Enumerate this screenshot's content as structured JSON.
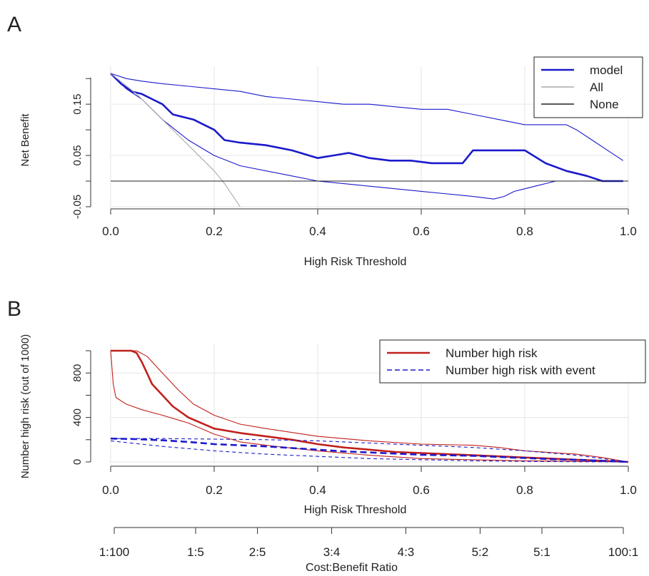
{
  "chart_data": [
    {
      "panel": "A",
      "type": "line",
      "xlabel": "High Risk Threshold",
      "ylabel": "Net Benefit",
      "xlim": [
        0,
        1
      ],
      "ylim": [
        -0.05,
        0.21
      ],
      "xticks": [
        0,
        0.2,
        0.4,
        0.6,
        0.8,
        1.0
      ],
      "xtick_labels": [
        "0.0",
        "0.2",
        "0.4",
        "0.6",
        "0.8",
        "1.0"
      ],
      "yticks": [
        -0.05,
        0.05,
        0.15
      ],
      "ytick_labels": [
        "-0.05",
        "0.05",
        "0.15"
      ],
      "grid": true,
      "legend_position": "top-right",
      "legend": [
        {
          "label": "model",
          "color": "#1a1acc"
        },
        {
          "label": "All",
          "color": "#aaaaaa"
        },
        {
          "label": "None",
          "color": "#222222"
        }
      ],
      "series": [
        {
          "name": "model",
          "style": "thick",
          "color": "#1a1acc",
          "x": [
            0,
            0.02,
            0.04,
            0.06,
            0.08,
            0.1,
            0.12,
            0.14,
            0.16,
            0.18,
            0.2,
            0.22,
            0.25,
            0.3,
            0.35,
            0.4,
            0.43,
            0.46,
            0.5,
            0.54,
            0.58,
            0.62,
            0.66,
            0.68,
            0.7,
            0.72,
            0.74,
            0.77,
            0.8,
            0.84,
            0.88,
            0.92,
            0.95,
            0.99
          ],
          "y": [
            0.21,
            0.19,
            0.175,
            0.17,
            0.16,
            0.15,
            0.13,
            0.125,
            0.12,
            0.11,
            0.1,
            0.08,
            0.075,
            0.07,
            0.06,
            0.045,
            0.05,
            0.055,
            0.045,
            0.04,
            0.04,
            0.035,
            0.035,
            0.035,
            0.06,
            0.06,
            0.06,
            0.06,
            0.06,
            0.035,
            0.02,
            0.01,
            0.0,
            0.0
          ]
        },
        {
          "name": "model-upper",
          "style": "thin",
          "color": "#1a1acc",
          "x": [
            0,
            0.03,
            0.06,
            0.1,
            0.15,
            0.2,
            0.25,
            0.3,
            0.35,
            0.4,
            0.45,
            0.5,
            0.55,
            0.6,
            0.65,
            0.7,
            0.75,
            0.8,
            0.85,
            0.88,
            0.9,
            0.93,
            0.96,
            0.99
          ],
          "y": [
            0.21,
            0.2,
            0.195,
            0.19,
            0.185,
            0.18,
            0.175,
            0.165,
            0.16,
            0.155,
            0.15,
            0.15,
            0.145,
            0.14,
            0.14,
            0.13,
            0.12,
            0.11,
            0.11,
            0.11,
            0.1,
            0.08,
            0.06,
            0.04
          ]
        },
        {
          "name": "model-lower",
          "style": "thin",
          "color": "#1a1acc",
          "x": [
            0,
            0.03,
            0.06,
            0.1,
            0.15,
            0.2,
            0.25,
            0.3,
            0.35,
            0.4,
            0.45,
            0.5,
            0.55,
            0.6,
            0.65,
            0.7,
            0.74,
            0.76,
            0.78,
            0.8,
            0.82,
            0.84,
            0.86,
            0.9,
            0.99
          ],
          "y": [
            0.21,
            0.18,
            0.16,
            0.12,
            0.08,
            0.05,
            0.03,
            0.02,
            0.01,
            0.0,
            -0.005,
            -0.01,
            -0.015,
            -0.02,
            -0.025,
            -0.03,
            -0.035,
            -0.03,
            -0.02,
            -0.015,
            -0.01,
            -0.005,
            0.0,
            0.0,
            0.0
          ]
        },
        {
          "name": "All",
          "style": "thin",
          "color": "#aaaaaa",
          "x": [
            0,
            0.05,
            0.1,
            0.15,
            0.2,
            0.22,
            0.25
          ],
          "y": [
            0.21,
            0.17,
            0.12,
            0.07,
            0.02,
            -0.005,
            -0.05
          ]
        },
        {
          "name": "None",
          "style": "thin",
          "color": "#222222",
          "x": [
            0,
            1
          ],
          "y": [
            0,
            0
          ]
        }
      ]
    },
    {
      "panel": "B",
      "type": "line",
      "xlabel": "High Risk Threshold",
      "ylabel": "Number high risk (out of 1000)",
      "xlim": [
        0,
        1
      ],
      "ylim": [
        0,
        1000
      ],
      "xticks": [
        0,
        0.2,
        0.4,
        0.6,
        0.8,
        1.0
      ],
      "xtick_labels": [
        "0.0",
        "0.2",
        "0.4",
        "0.6",
        "0.8",
        "1.0"
      ],
      "yticks": [
        0,
        400,
        800
      ],
      "ytick_labels": [
        "0",
        "400",
        "800"
      ],
      "grid": true,
      "legend_position": "top-right",
      "legend": [
        {
          "label": "Number high risk",
          "color": "#c0201a",
          "dash": "solid"
        },
        {
          "label": "Number high risk with event",
          "color": "#1a1acc",
          "dash": "dashed"
        }
      ],
      "series": [
        {
          "name": "Number high risk",
          "style": "thick",
          "color": "#c0201a",
          "dash": "solid",
          "x": [
            0,
            0.02,
            0.04,
            0.05,
            0.06,
            0.07,
            0.08,
            0.1,
            0.12,
            0.15,
            0.2,
            0.25,
            0.3,
            0.35,
            0.4,
            0.45,
            0.5,
            0.55,
            0.6,
            0.65,
            0.7,
            0.75,
            0.8,
            0.85,
            0.9,
            0.95,
            1.0
          ],
          "y": [
            1000,
            1000,
            1000,
            980,
            900,
            800,
            700,
            600,
            500,
            400,
            300,
            260,
            230,
            200,
            160,
            130,
            110,
            90,
            80,
            70,
            60,
            50,
            40,
            30,
            20,
            10,
            0
          ]
        },
        {
          "name": "Number high risk-upper",
          "style": "thin",
          "color": "#c0201a",
          "dash": "solid",
          "x": [
            0,
            0.05,
            0.07,
            0.1,
            0.13,
            0.16,
            0.2,
            0.25,
            0.3,
            0.4,
            0.5,
            0.6,
            0.7,
            0.75,
            0.8,
            0.9,
            0.95,
            1.0
          ],
          "y": [
            1000,
            1000,
            950,
            800,
            650,
            520,
            420,
            340,
            300,
            230,
            190,
            160,
            150,
            130,
            100,
            70,
            40,
            0
          ]
        },
        {
          "name": "Number high risk-lower",
          "style": "thin",
          "color": "#c0201a",
          "dash": "solid",
          "x": [
            0,
            0.005,
            0.01,
            0.03,
            0.06,
            0.1,
            0.15,
            0.2,
            0.25,
            0.3,
            0.4,
            0.5,
            0.6,
            0.7,
            0.8,
            0.9,
            1.0
          ],
          "y": [
            1000,
            700,
            580,
            520,
            470,
            420,
            350,
            250,
            180,
            150,
            100,
            60,
            30,
            20,
            10,
            5,
            0
          ]
        },
        {
          "name": "Number high risk with event",
          "style": "thick",
          "color": "#1a1acc",
          "dash": "dashed",
          "x": [
            0,
            0.05,
            0.1,
            0.15,
            0.2,
            0.25,
            0.3,
            0.35,
            0.4,
            0.45,
            0.5,
            0.55,
            0.6,
            0.65,
            0.7,
            0.75,
            0.8,
            0.85,
            0.9,
            0.95,
            1.0
          ],
          "y": [
            210,
            205,
            195,
            180,
            160,
            150,
            140,
            125,
            110,
            95,
            85,
            75,
            65,
            60,
            55,
            45,
            35,
            25,
            20,
            10,
            0
          ]
        },
        {
          "name": "Number high risk with event-upper",
          "style": "thin",
          "color": "#1a1acc",
          "dash": "dashed",
          "x": [
            0,
            0.1,
            0.2,
            0.3,
            0.4,
            0.5,
            0.6,
            0.7,
            0.8,
            0.9,
            1.0
          ],
          "y": [
            210,
            210,
            205,
            200,
            190,
            170,
            150,
            130,
            100,
            60,
            0
          ]
        },
        {
          "name": "Number high risk with event-lower",
          "style": "thin",
          "color": "#1a1acc",
          "dash": "dashed",
          "x": [
            0,
            0.1,
            0.2,
            0.3,
            0.4,
            0.5,
            0.6,
            0.7,
            0.8,
            0.9,
            1.0
          ],
          "y": [
            190,
            140,
            100,
            70,
            50,
            30,
            20,
            10,
            5,
            2,
            0
          ]
        }
      ],
      "secondary_axis": {
        "label": "Cost:Benefit Ratio",
        "ticks": [
          0.01,
          0.1667,
          0.2857,
          0.4286,
          0.5714,
          0.7143,
          0.8333,
          0.99
        ],
        "tick_labels": [
          "1:100",
          "1:5",
          "2:5",
          "3:4",
          "4:3",
          "5:2",
          "5:1",
          "100:1"
        ]
      }
    }
  ],
  "panel_labels": [
    "A",
    "B"
  ]
}
